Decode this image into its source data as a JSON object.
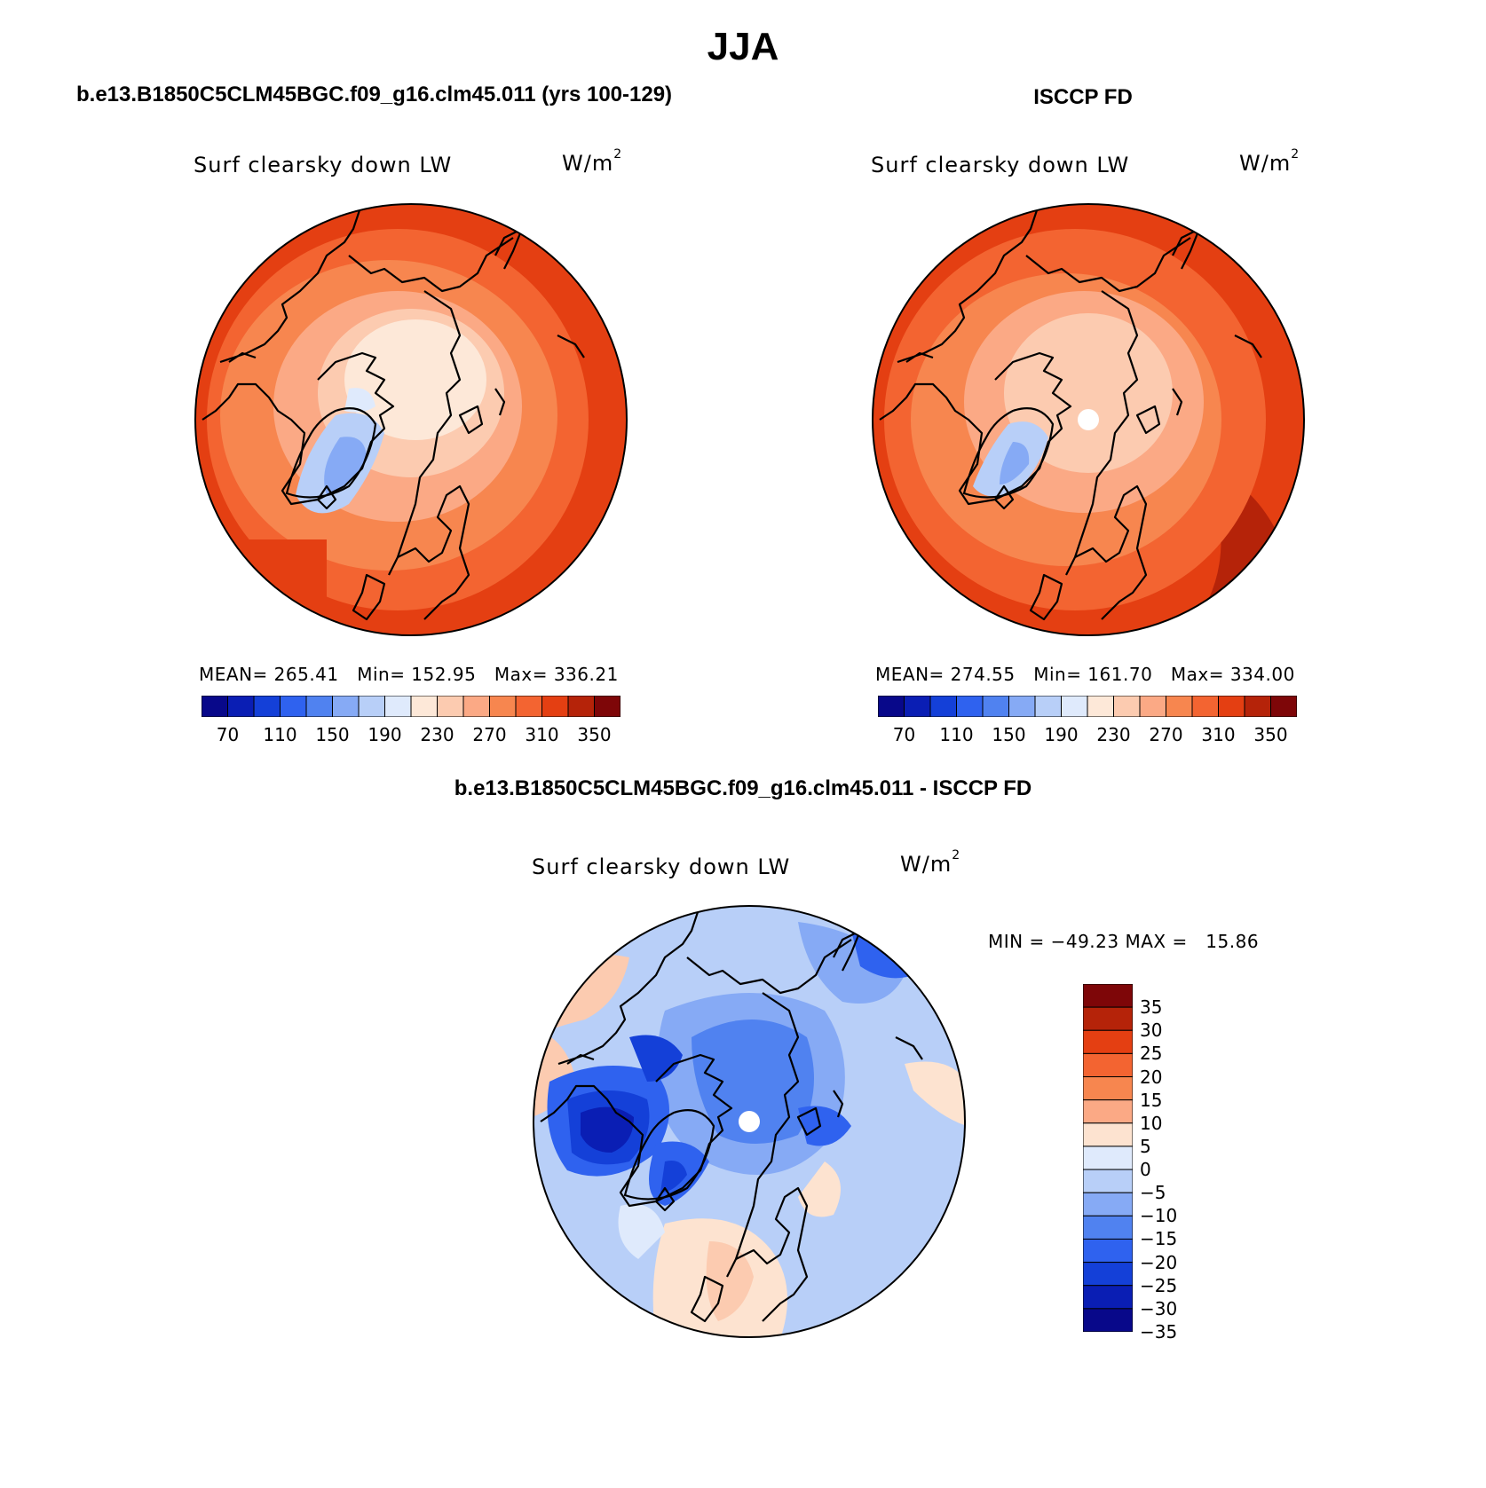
{
  "title": "JJA",
  "panels": {
    "model": {
      "header": "b.e13.B1850C5CLM45BGC.f09_g16.clm45.011 (yrs 100-129)",
      "variable": "Surf clearsky down LW",
      "units_base": "W/m",
      "units_exp": "2",
      "stats": "MEAN= 265.41   Min= 152.95   Max= 336.21"
    },
    "obs": {
      "header": "ISCCP FD",
      "variable": "Surf clearsky down LW",
      "units_base": "W/m",
      "units_exp": "2",
      "stats": "MEAN= 274.55   Min= 161.70   Max= 334.00"
    },
    "diff": {
      "header": "b.e13.B1850C5CLM45BGC.f09_g16.clm45.011 - ISCCP FD",
      "variable": "Surf clearsky down LW",
      "units_base": "W/m",
      "units_exp": "2",
      "stats": "MIN = −49.23 MAX =   15.86"
    }
  },
  "colorbar_abs": {
    "colors": [
      "#08088a",
      "#0a1eb4",
      "#1440d8",
      "#2f62ef",
      "#5082f0",
      "#86aaf5",
      "#b8cff8",
      "#dfeafc",
      "#fde8d8",
      "#fccbb0",
      "#fba985",
      "#f7864f",
      "#f36431",
      "#e43f12",
      "#b52309",
      "#7e0608"
    ],
    "tick_labels": [
      "70",
      "110",
      "150",
      "190",
      "230",
      "270",
      "310",
      "350"
    ]
  },
  "colorbar_diff": {
    "colors": [
      "#7e0608",
      "#b52309",
      "#e43f12",
      "#f36431",
      "#f7864f",
      "#fba985",
      "#fde3d0",
      "#dfeafc",
      "#b8cff8",
      "#86aaf5",
      "#5082f0",
      "#2f62ef",
      "#1440d8",
      "#0a1eb4",
      "#08088a"
    ],
    "tick_labels": [
      "35",
      "30",
      "25",
      "20",
      "15",
      "10",
      "5",
      "0",
      "−5",
      "−10",
      "−15",
      "−20",
      "−25",
      "−30",
      "−35"
    ]
  }
}
